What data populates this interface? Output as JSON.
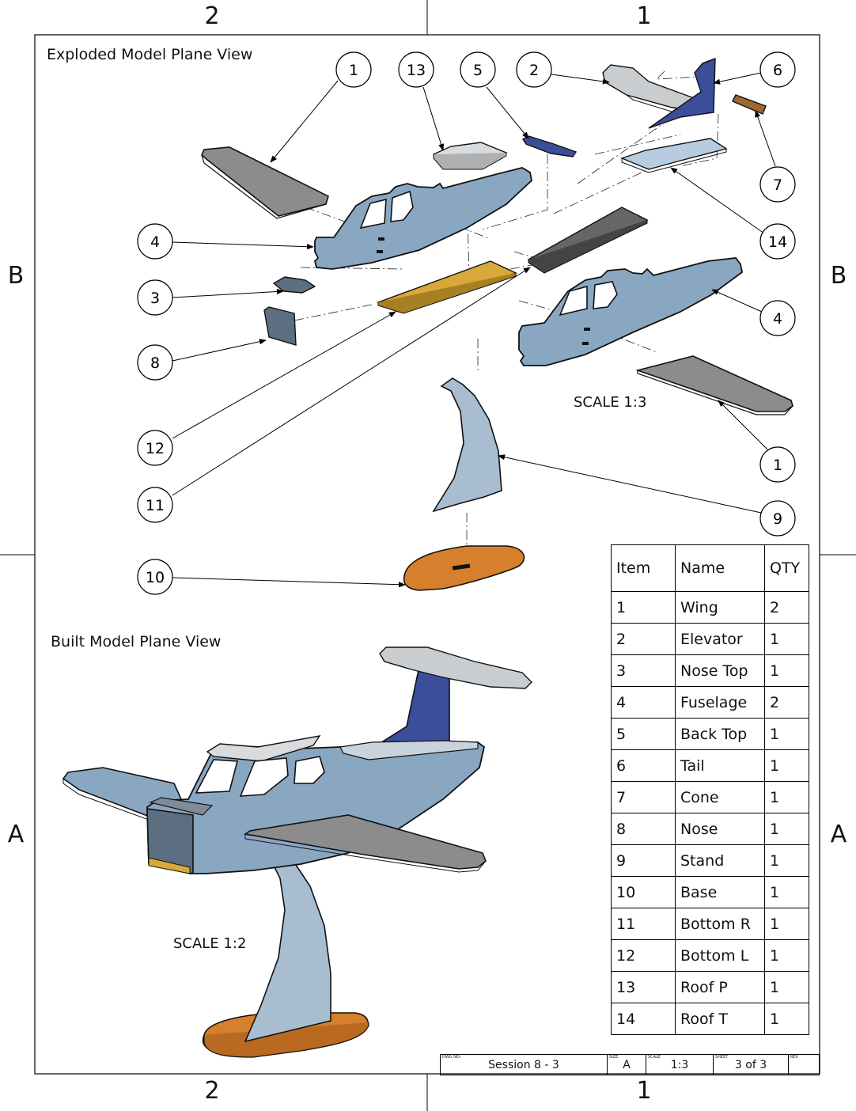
{
  "zones": {
    "top": [
      "2",
      "1"
    ],
    "bottom": [
      "2",
      "1"
    ],
    "left": [
      "B",
      "A"
    ],
    "right": [
      "B",
      "A"
    ]
  },
  "views": {
    "exploded_title": "Exploded Model Plane View",
    "exploded_scale": "SCALE 1:3",
    "built_title": "Built Model Plane View",
    "built_scale": "SCALE 1:2"
  },
  "balloons": [
    "1",
    "13",
    "5",
    "2",
    "6",
    "7",
    "14",
    "4",
    "3",
    "8",
    "12",
    "11",
    "10",
    "4",
    "1",
    "9"
  ],
  "bom": {
    "headers": [
      "Item",
      "Name",
      "QTY"
    ],
    "rows": [
      {
        "item": "1",
        "name": "Wing",
        "qty": "2"
      },
      {
        "item": "2",
        "name": "Elevator",
        "qty": "1"
      },
      {
        "item": "3",
        "name": "Nose Top",
        "qty": "1"
      },
      {
        "item": "4",
        "name": "Fuselage",
        "qty": "2"
      },
      {
        "item": "5",
        "name": "Back Top",
        "qty": "1"
      },
      {
        "item": "6",
        "name": "Tail",
        "qty": "1"
      },
      {
        "item": "7",
        "name": "Cone",
        "qty": "1"
      },
      {
        "item": "8",
        "name": "Nose",
        "qty": "1"
      },
      {
        "item": "9",
        "name": "Stand",
        "qty": "1"
      },
      {
        "item": "10",
        "name": "Base",
        "qty": "1"
      },
      {
        "item": "11",
        "name": "Bottom R",
        "qty": "1"
      },
      {
        "item": "12",
        "name": "Bottom L",
        "qty": "1"
      },
      {
        "item": "13",
        "name": "Roof P",
        "qty": "1"
      },
      {
        "item": "14",
        "name": "Roof T",
        "qty": "1"
      }
    ]
  },
  "title_block": {
    "dwg_no_label": "DWG NO.",
    "dwg_no": "Session 8 - 3",
    "size_label": "SIZE",
    "size": "A",
    "scale_label": "SCALE",
    "scale": "1:3",
    "sheet_label": "SHEET",
    "sheet": "3 of 3",
    "rev_label": "REV"
  },
  "colors": {
    "fuselage": "#8aa7c2",
    "wing": "#8c8c8c",
    "tail": "#3b4e9a",
    "roof": "#d9dbdd",
    "bottom_l": "#d8a838",
    "bottom_r": "#666666",
    "base": "#d67f2c",
    "stand": "#a9bdd1",
    "elevator": "#c9cdd0",
    "roof_t": "#b7ccde",
    "cone": "#a0682e",
    "nose": "#5c6e80"
  }
}
